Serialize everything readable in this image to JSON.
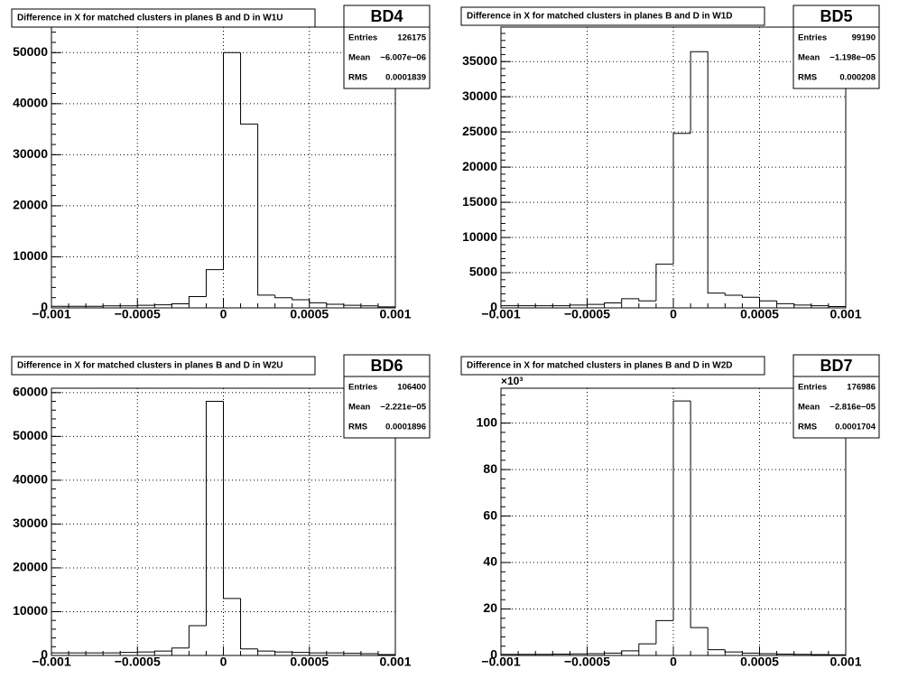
{
  "chart_data": [
    {
      "type": "histogram",
      "title": "Difference in X for matched clusters in planes B and D in W1U",
      "bins": [
        -0.001,
        -0.0009,
        -0.0008,
        -0.0007,
        -0.0006,
        -0.0005,
        -0.0004,
        -0.0003,
        -0.0002,
        -0.0001,
        0,
        0.0001,
        0.0002,
        0.0003,
        0.0004,
        0.0005,
        0.0006,
        0.0007,
        0.0008,
        0.0009,
        0.001
      ],
      "values": [
        300,
        300,
        300,
        400,
        400,
        500,
        600,
        800,
        2200,
        7500,
        50000,
        36000,
        2500,
        2000,
        1600,
        1000,
        700,
        500,
        400,
        200
      ],
      "color": "#000000",
      "grid": true,
      "xlim": [
        -0.001,
        0.001
      ],
      "xticks": [
        {
          "value": -0.001,
          "label": "−0.001"
        },
        {
          "value": -0.0005,
          "label": "−0.0005"
        },
        0,
        0.0005,
        0.001
      ],
      "ylim": [
        0,
        55000
      ],
      "yticks": [
        0,
        10000,
        20000,
        30000,
        40000,
        50000
      ],
      "stats": {
        "title": "BD4",
        "entries": {
          "label": "Entries",
          "value": 126175
        },
        "mean": {
          "label": "Mean",
          "value": -6.007e-06,
          "value_label": "−6.007e−06"
        },
        "rms": {
          "label": "RMS",
          "value": 0.0001839
        }
      }
    },
    {
      "type": "histogram",
      "title": "Difference in X for matched clusters in planes B and D in W1D",
      "bins": [
        -0.001,
        -0.0009,
        -0.0008,
        -0.0007,
        -0.0006,
        -0.0005,
        -0.0004,
        -0.0003,
        -0.0002,
        -0.0001,
        0,
        0.0001,
        0.0002,
        0.0003,
        0.0004,
        0.0005,
        0.0006,
        0.0007,
        0.0008,
        0.0009,
        0.001
      ],
      "values": [
        300,
        300,
        300,
        300,
        400,
        500,
        700,
        1300,
        1000,
        6200,
        24800,
        36400,
        2100,
        1800,
        1500,
        1000,
        600,
        400,
        300,
        200
      ],
      "color": "#000000",
      "grid": true,
      "xlim": [
        -0.001,
        0.001
      ],
      "xticks": [
        {
          "value": -0.001,
          "label": "−0.001"
        },
        {
          "value": -0.0005,
          "label": "−0.0005"
        },
        0,
        0.0005,
        0.001
      ],
      "ylim": [
        0,
        39900
      ],
      "yticks": [
        0,
        5000,
        10000,
        15000,
        20000,
        25000,
        30000,
        35000
      ],
      "stats": {
        "title": "BD5",
        "entries": {
          "label": "Entries",
          "value": 99190
        },
        "mean": {
          "label": "Mean",
          "value": -1.198e-05,
          "value_label": "−1.198e−05"
        },
        "rms": {
          "label": "RMS",
          "value": 0.000208
        }
      }
    },
    {
      "type": "histogram",
      "title": "Difference in X for matched clusters in planes B and D in W2U",
      "bins": [
        -0.001,
        -0.0009,
        -0.0008,
        -0.0007,
        -0.0006,
        -0.0005,
        -0.0004,
        -0.0003,
        -0.0002,
        -0.0001,
        0,
        0.0001,
        0.0002,
        0.0003,
        0.0004,
        0.0005,
        0.0006,
        0.0007,
        0.0008,
        0.0009,
        0.001
      ],
      "values": [
        600,
        600,
        600,
        600,
        700,
        800,
        1000,
        1700,
        6800,
        58000,
        13000,
        1500,
        1000,
        800,
        700,
        600,
        600,
        500,
        400,
        200
      ],
      "color": "#000000",
      "grid": true,
      "xlim": [
        -0.001,
        0.001
      ],
      "xticks": [
        {
          "value": -0.001,
          "label": "−0.001"
        },
        {
          "value": -0.0005,
          "label": "−0.0005"
        },
        0,
        0.0005,
        0.001
      ],
      "ylim": [
        0,
        61000
      ],
      "yticks": [
        0,
        10000,
        20000,
        30000,
        40000,
        50000,
        60000
      ],
      "stats": {
        "title": "BD6",
        "entries": {
          "label": "Entries",
          "value": 106400
        },
        "mean": {
          "label": "Mean",
          "value": -2.221e-05,
          "value_label": "−2.221e−05"
        },
        "rms": {
          "label": "RMS",
          "value": 0.0001896
        }
      }
    },
    {
      "type": "histogram",
      "title": "Difference in X for matched clusters in planes B and D in W2D",
      "bins": [
        -0.001,
        -0.0009,
        -0.0008,
        -0.0007,
        -0.0006,
        -0.0005,
        -0.0004,
        -0.0003,
        -0.0002,
        -0.0001,
        0,
        0.0001,
        0.0002,
        0.0003,
        0.0004,
        0.0005,
        0.0006,
        0.0007,
        0.0008,
        0.0009,
        0.001
      ],
      "values": [
        0.5,
        0.5,
        0.5,
        0.6,
        0.7,
        0.8,
        1,
        2,
        5,
        15,
        109.5,
        12,
        2.5,
        1.5,
        1,
        0.8,
        0.6,
        0.5,
        0.4,
        0.3
      ],
      "color": "#000000",
      "grid": true,
      "xlim": [
        -0.001,
        0.001
      ],
      "xticks": [
        {
          "value": -0.001,
          "label": "−0.001"
        },
        {
          "value": -0.0005,
          "label": "−0.0005"
        },
        0,
        0.0005,
        0.001
      ],
      "ylim": [
        0,
        115
      ],
      "yticks": [
        0,
        20,
        40,
        60,
        80,
        100
      ],
      "y_exponent_label": "×10³",
      "stats": {
        "title": "BD7",
        "entries": {
          "label": "Entries",
          "value": 176986
        },
        "mean": {
          "label": "Mean",
          "value": -2.816e-05,
          "value_label": "−2.816e−05"
        },
        "rms": {
          "label": "RMS",
          "value": 0.0001704
        }
      }
    }
  ]
}
